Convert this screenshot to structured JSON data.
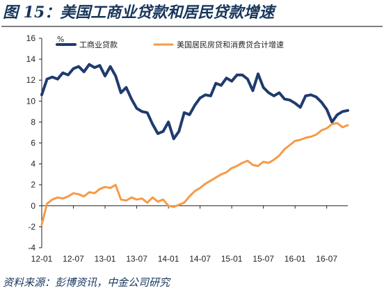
{
  "figure": {
    "title": "图 15：美国工商业贷款和居民贷款增速",
    "source": "资料来源：彭博资讯，中金公司研究"
  },
  "chart_data": {
    "type": "line",
    "title": "",
    "ylabel": "%",
    "ylim": [
      -4,
      16
    ],
    "yticks": [
      -4,
      -2,
      0,
      2,
      4,
      6,
      8,
      10,
      12,
      14,
      16
    ],
    "grid": false,
    "legend_position": "top",
    "xticks": [
      "12-01",
      "12-07",
      "13-01",
      "13-07",
      "14-01",
      "14-07",
      "15-01",
      "15-07",
      "16-01",
      "16-07"
    ],
    "xrange": [
      "2012-01",
      "2016-11"
    ],
    "series": [
      {
        "name": "工商业贷款",
        "color": "#1f3b6e",
        "points": [
          [
            "2012-01",
            10.6
          ],
          [
            "2012-02",
            12.1
          ],
          [
            "2012-03",
            12.3
          ],
          [
            "2012-04",
            12.1
          ],
          [
            "2012-05",
            12.7
          ],
          [
            "2012-06",
            12.5
          ],
          [
            "2012-07",
            13.1
          ],
          [
            "2012-08",
            13.3
          ],
          [
            "2012-09",
            12.8
          ],
          [
            "2012-10",
            13.5
          ],
          [
            "2012-11",
            13.2
          ],
          [
            "2012-12",
            13.4
          ],
          [
            "2013-01",
            12.4
          ],
          [
            "2013-02",
            13.3
          ],
          [
            "2013-03",
            12.4
          ],
          [
            "2013-04",
            10.8
          ],
          [
            "2013-05",
            11.3
          ],
          [
            "2013-06",
            10.2
          ],
          [
            "2013-07",
            9.3
          ],
          [
            "2013-08",
            9.0
          ],
          [
            "2013-09",
            8.9
          ],
          [
            "2013-10",
            7.8
          ],
          [
            "2013-11",
            6.9
          ],
          [
            "2013-12",
            7.1
          ],
          [
            "2014-01",
            8.0
          ],
          [
            "2014-02",
            6.4
          ],
          [
            "2014-03",
            7.1
          ],
          [
            "2014-04",
            8.9
          ],
          [
            "2014-05",
            8.7
          ],
          [
            "2014-06",
            9.6
          ],
          [
            "2014-07",
            10.3
          ],
          [
            "2014-08",
            10.6
          ],
          [
            "2014-09",
            10.5
          ],
          [
            "2014-10",
            11.7
          ],
          [
            "2014-11",
            11.5
          ],
          [
            "2014-12",
            12.2
          ],
          [
            "2015-01",
            11.9
          ],
          [
            "2015-02",
            12.5
          ],
          [
            "2015-03",
            12.5
          ],
          [
            "2015-04",
            12.1
          ],
          [
            "2015-05",
            11.0
          ],
          [
            "2015-06",
            12.6
          ],
          [
            "2015-07",
            11.3
          ],
          [
            "2015-08",
            10.8
          ],
          [
            "2015-09",
            10.5
          ],
          [
            "2015-10",
            10.8
          ],
          [
            "2015-11",
            10.2
          ],
          [
            "2015-12",
            10.1
          ],
          [
            "2016-01",
            9.8
          ],
          [
            "2016-02",
            9.4
          ],
          [
            "2016-03",
            10.5
          ],
          [
            "2016-04",
            10.6
          ],
          [
            "2016-05",
            10.4
          ],
          [
            "2016-06",
            9.9
          ],
          [
            "2016-07",
            9.2
          ],
          [
            "2016-08",
            8.0
          ],
          [
            "2016-09",
            8.7
          ],
          [
            "2016-10",
            9.0
          ],
          [
            "2016-11",
            9.1
          ]
        ]
      },
      {
        "name": "美国居民房贷和消费贷合计增速",
        "color": "#f59a48",
        "points": [
          [
            "2012-01",
            -1.8
          ],
          [
            "2012-02",
            0.2
          ],
          [
            "2012-03",
            0.6
          ],
          [
            "2012-04",
            0.8
          ],
          [
            "2012-05",
            0.7
          ],
          [
            "2012-06",
            0.9
          ],
          [
            "2012-07",
            1.2
          ],
          [
            "2012-08",
            1.1
          ],
          [
            "2012-09",
            0.9
          ],
          [
            "2012-10",
            1.3
          ],
          [
            "2012-11",
            1.2
          ],
          [
            "2012-12",
            1.6
          ],
          [
            "2013-01",
            1.8
          ],
          [
            "2013-02",
            1.7
          ],
          [
            "2013-03",
            2.0
          ],
          [
            "2013-04",
            0.6
          ],
          [
            "2013-05",
            0.5
          ],
          [
            "2013-06",
            0.8
          ],
          [
            "2013-07",
            0.6
          ],
          [
            "2013-08",
            0.7
          ],
          [
            "2013-09",
            0.3
          ],
          [
            "2013-10",
            0.8
          ],
          [
            "2013-11",
            0.4
          ],
          [
            "2013-12",
            0.6
          ],
          [
            "2014-01",
            0.0
          ],
          [
            "2014-02",
            -0.1
          ],
          [
            "2014-03",
            0.1
          ],
          [
            "2014-04",
            0.3
          ],
          [
            "2014-05",
            0.9
          ],
          [
            "2014-06",
            1.4
          ],
          [
            "2014-07",
            1.7
          ],
          [
            "2014-08",
            2.1
          ],
          [
            "2014-09",
            2.4
          ],
          [
            "2014-10",
            2.7
          ],
          [
            "2014-11",
            3.0
          ],
          [
            "2014-12",
            3.2
          ],
          [
            "2015-01",
            3.6
          ],
          [
            "2015-02",
            3.8
          ],
          [
            "2015-03",
            4.1
          ],
          [
            "2015-04",
            4.3
          ],
          [
            "2015-05",
            3.9
          ],
          [
            "2015-06",
            3.8
          ],
          [
            "2015-07",
            4.2
          ],
          [
            "2015-08",
            4.1
          ],
          [
            "2015-09",
            4.4
          ],
          [
            "2015-10",
            4.8
          ],
          [
            "2015-11",
            5.4
          ],
          [
            "2015-12",
            5.8
          ],
          [
            "2016-01",
            6.2
          ],
          [
            "2016-02",
            6.3
          ],
          [
            "2016-03",
            6.5
          ],
          [
            "2016-04",
            6.6
          ],
          [
            "2016-05",
            6.8
          ],
          [
            "2016-06",
            7.2
          ],
          [
            "2016-07",
            7.4
          ],
          [
            "2016-08",
            7.8
          ],
          [
            "2016-09",
            7.9
          ],
          [
            "2016-10",
            7.5
          ],
          [
            "2016-11",
            7.7
          ]
        ]
      }
    ]
  }
}
